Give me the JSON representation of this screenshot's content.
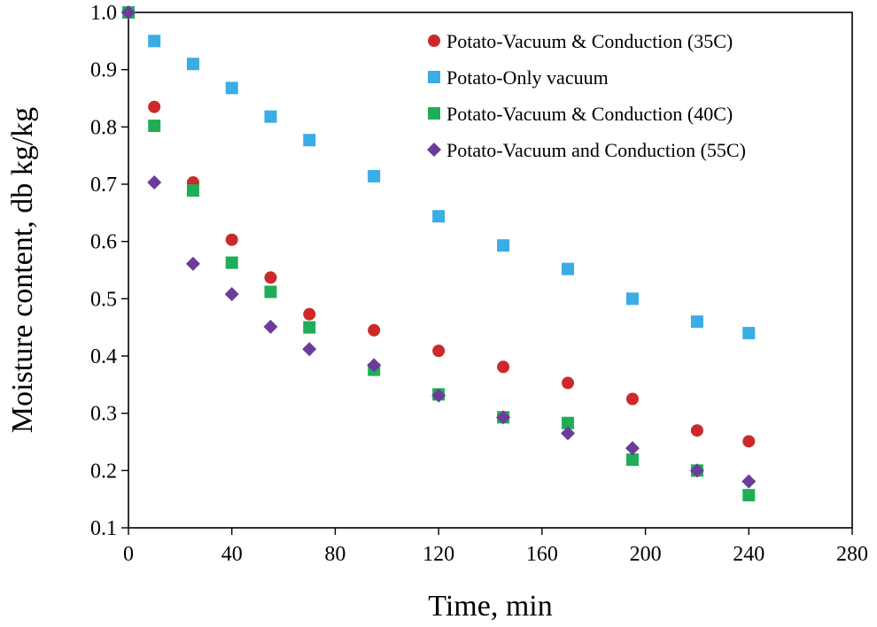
{
  "chart_data": {
    "type": "scatter",
    "title": "",
    "xlabel": "Time, min",
    "ylabel": "Moisture content, db kg/kg",
    "xlim": [
      0,
      280
    ],
    "ylim": [
      0.1,
      1.0
    ],
    "x_ticks": [
      "0",
      "40",
      "80",
      "120",
      "160",
      "200",
      "240",
      "280"
    ],
    "y_ticks": [
      "1.0",
      "0.9",
      "0.8",
      "0.7",
      "0.6",
      "0.5",
      "0.4",
      "0.3",
      "0.2",
      "0.1"
    ],
    "grid": false,
    "legend_position": "top-right",
    "series": [
      {
        "name": "Potato-Vacuum & Conduction (35C)",
        "color": "#cc2a2a",
        "marker": "circle",
        "x": [
          0,
          10,
          25,
          40,
          55,
          70,
          95,
          120,
          145,
          170,
          195,
          220,
          240
        ],
        "y": [
          1.0,
          0.835,
          0.703,
          0.603,
          0.537,
          0.473,
          0.445,
          0.409,
          0.381,
          0.353,
          0.325,
          0.27,
          0.251
        ]
      },
      {
        "name": "Potato-Only vacuum",
        "color": "#3aace6",
        "marker": "square",
        "x": [
          0,
          10,
          25,
          40,
          55,
          70,
          95,
          120,
          145,
          170,
          195,
          220,
          240
        ],
        "y": [
          1.0,
          0.95,
          0.91,
          0.868,
          0.818,
          0.777,
          0.714,
          0.644,
          0.593,
          0.552,
          0.5,
          0.46,
          0.44
        ]
      },
      {
        "name": "Potato-Vacuum & Conduction (40C)",
        "color": "#1fae56",
        "marker": "square",
        "x": [
          0,
          10,
          25,
          40,
          55,
          70,
          95,
          120,
          145,
          170,
          195,
          220,
          240
        ],
        "y": [
          1.0,
          0.802,
          0.689,
          0.563,
          0.512,
          0.45,
          0.376,
          0.333,
          0.293,
          0.283,
          0.219,
          0.2,
          0.157
        ]
      },
      {
        "name": "Potato-Vacuum and Conduction (55C)",
        "color": "#6a3d9a",
        "marker": "diamond",
        "x": [
          0,
          10,
          25,
          40,
          55,
          70,
          95,
          120,
          145,
          170,
          195,
          220,
          240
        ],
        "y": [
          1.0,
          0.703,
          0.561,
          0.508,
          0.451,
          0.412,
          0.384,
          0.331,
          0.293,
          0.265,
          0.239,
          0.2,
          0.181
        ]
      }
    ]
  }
}
